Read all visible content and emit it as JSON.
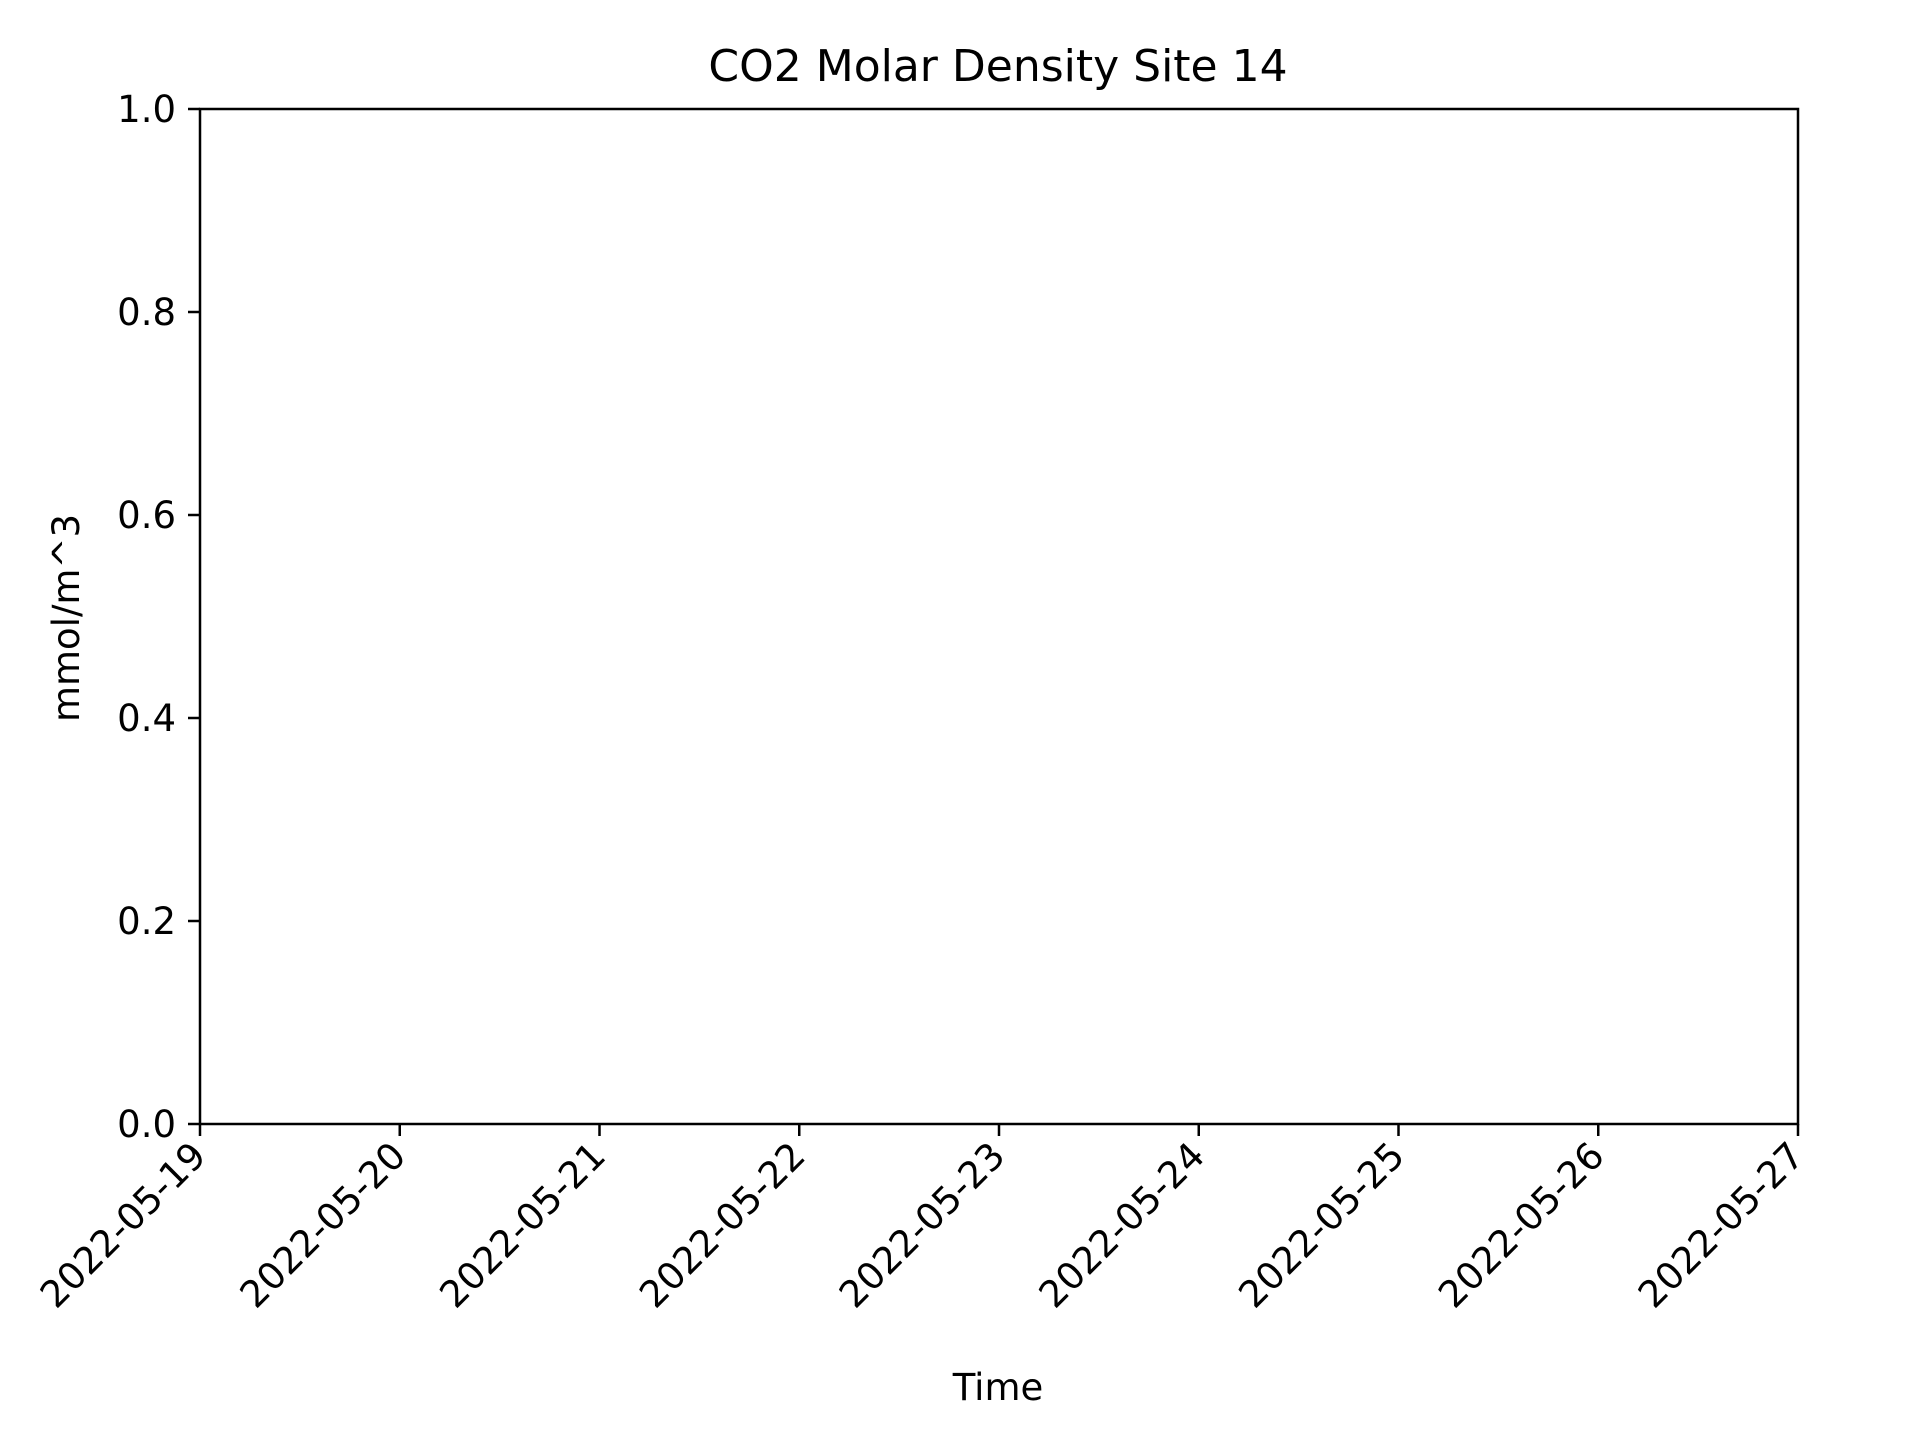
{
  "chart_data": {
    "type": "line",
    "title": "CO2 Molar Density Site 14",
    "xlabel": "Time",
    "ylabel": "mmol/m^3",
    "x_type": "date",
    "xlim": [
      "2022-05-19",
      "2022-05-27"
    ],
    "ylim": [
      0.0,
      1.0
    ],
    "x_ticks": [
      "2022-05-19",
      "2022-05-20",
      "2022-05-21",
      "2022-05-22",
      "2022-05-23",
      "2022-05-24",
      "2022-05-25",
      "2022-05-26",
      "2022-05-27"
    ],
    "y_ticks": [
      "0.0",
      "0.2",
      "0.4",
      "0.6",
      "0.8",
      "1.0"
    ],
    "y_tick_values": [
      0.0,
      0.2,
      0.4,
      0.6,
      0.8,
      1.0
    ],
    "series": [],
    "grid": false,
    "legend": "none"
  }
}
